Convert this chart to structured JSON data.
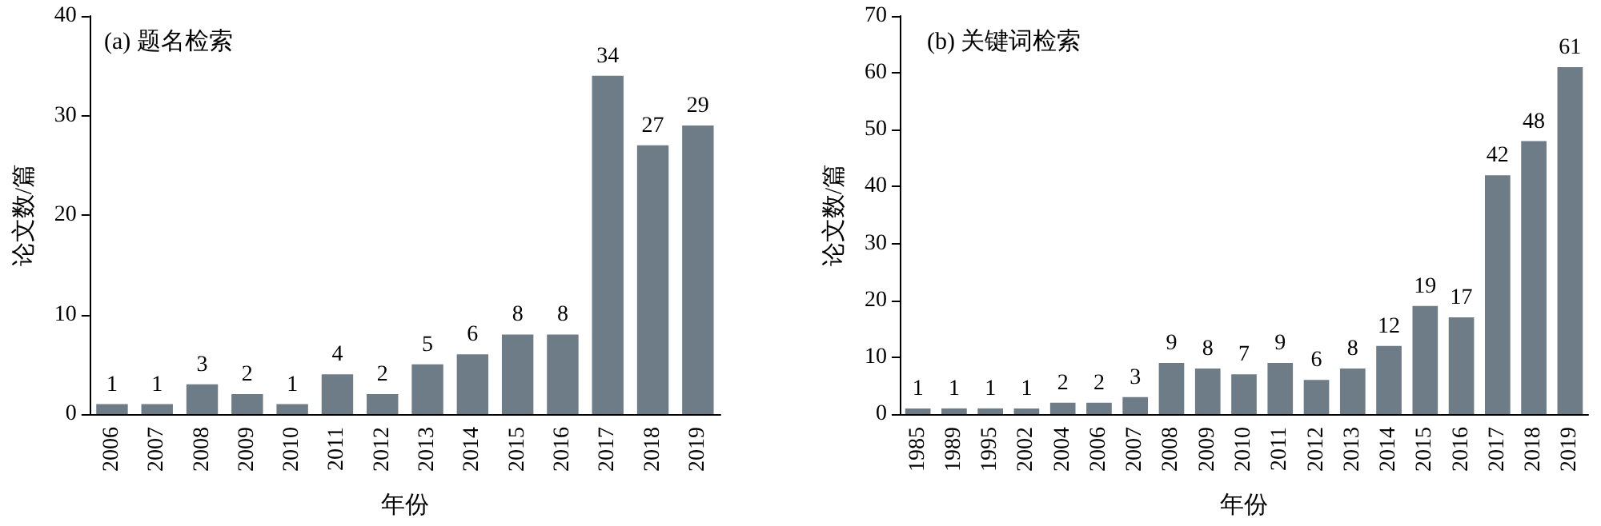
{
  "chart_data": [
    {
      "type": "bar",
      "title": "(a) 题名检索",
      "xlabel": "年份",
      "ylabel": "论文数/篇",
      "categories": [
        "2006",
        "2007",
        "2008",
        "2009",
        "2010",
        "2011",
        "2012",
        "2013",
        "2014",
        "2015",
        "2016",
        "2017",
        "2018",
        "2019"
      ],
      "values": [
        1,
        1,
        3,
        2,
        1,
        4,
        2,
        5,
        6,
        8,
        8,
        34,
        27,
        29
      ],
      "color": "#6e7c87",
      "ylim": [
        0,
        40
      ],
      "yticks": [
        0,
        10,
        20,
        30,
        40
      ],
      "data_labels": true
    },
    {
      "type": "bar",
      "title": "(b) 关键词检索",
      "xlabel": "年份",
      "ylabel": "论文数/篇",
      "categories": [
        "1985",
        "1989",
        "1995",
        "2002",
        "2004",
        "2006",
        "2007",
        "2008",
        "2009",
        "2010",
        "2011",
        "2012",
        "2013",
        "2014",
        "2015",
        "2016",
        "2017",
        "2018",
        "2019"
      ],
      "values": [
        1,
        1,
        1,
        1,
        2,
        2,
        3,
        9,
        8,
        7,
        9,
        6,
        8,
        12,
        19,
        17,
        42,
        48,
        61
      ],
      "color": "#6e7c87",
      "ylim": [
        0,
        70
      ],
      "yticks": [
        0,
        10,
        20,
        30,
        40,
        50,
        60,
        70
      ],
      "data_labels": true
    }
  ]
}
